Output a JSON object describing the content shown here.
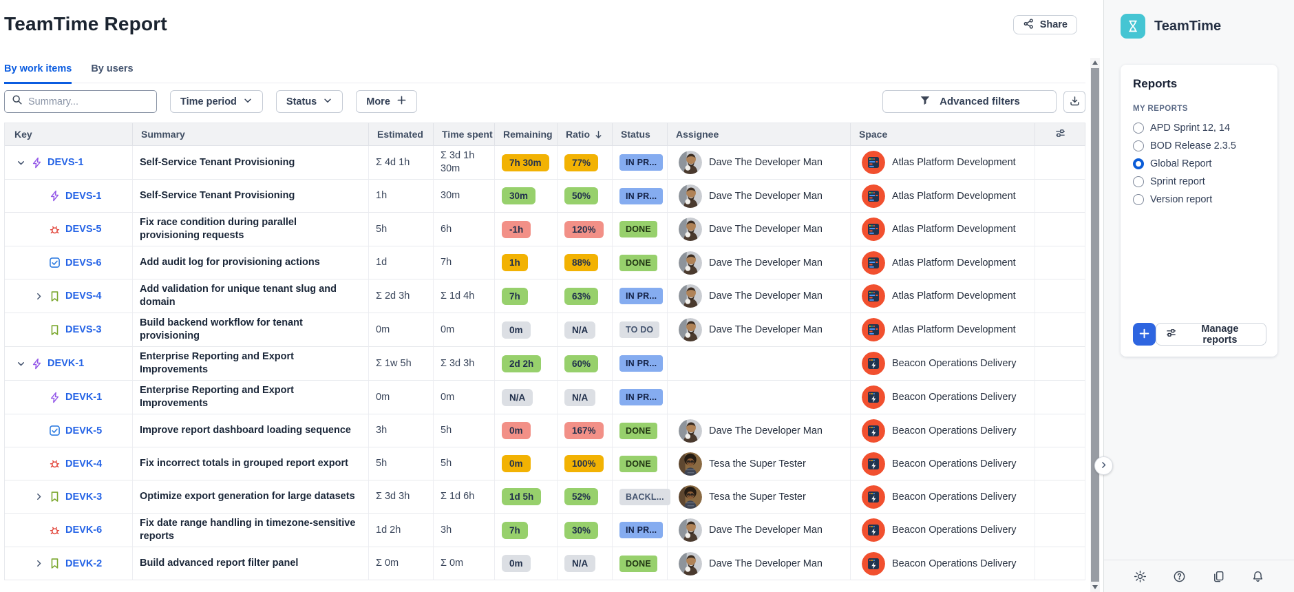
{
  "page": {
    "title": "TeamTime Report"
  },
  "header": {
    "share_label": "Share"
  },
  "tabs": [
    {
      "label": "By work items",
      "active": true
    },
    {
      "label": "By users",
      "active": false
    }
  ],
  "filters": {
    "search_placeholder": "Summary...",
    "time_period_label": "Time period",
    "status_label": "Status",
    "more_label": "More",
    "advanced_filters_label": "Advanced filters"
  },
  "table": {
    "columns": [
      "Key",
      "Summary",
      "Estimated",
      "Time spent",
      "Remaining",
      "Ratio",
      "Status",
      "Assignee",
      "Space"
    ],
    "sorted_column": "Ratio",
    "sort_direction": "desc",
    "rows": [
      {
        "level": 0,
        "expander": "down",
        "type": "epic",
        "key": "DEVS-1",
        "summary": "Self-Service Tenant Provisioning",
        "estimated": "Σ 4d 1h",
        "time_spent": "Σ 3d 1h 30m",
        "remaining": {
          "text": "7h 30m",
          "color": "yellow"
        },
        "ratio": {
          "text": "77%",
          "color": "yellow"
        },
        "status": {
          "text": "IN PR...",
          "color": "blue"
        },
        "assignee": "Dave The Developer Man",
        "avatar": "dave",
        "space": "Atlas Platform Development",
        "space_icon": "atlas"
      },
      {
        "level": 1,
        "expander": null,
        "type": "epic",
        "key": "DEVS-1",
        "summary": "Self-Service Tenant Provisioning",
        "estimated": "1h",
        "time_spent": "30m",
        "remaining": {
          "text": "30m",
          "color": "green"
        },
        "ratio": {
          "text": "50%",
          "color": "green"
        },
        "status": {
          "text": "IN PR...",
          "color": "blue"
        },
        "assignee": "Dave The Developer Man",
        "avatar": "dave",
        "space": "Atlas Platform Development",
        "space_icon": "atlas"
      },
      {
        "level": 1,
        "expander": null,
        "type": "bug",
        "key": "DEVS-5",
        "summary": "Fix race condition during parallel provisioning requests",
        "estimated": "5h",
        "time_spent": "6h",
        "remaining": {
          "text": "-1h",
          "color": "red"
        },
        "ratio": {
          "text": "120%",
          "color": "red"
        },
        "status": {
          "text": "DONE",
          "color": "green"
        },
        "assignee": "Dave The Developer Man",
        "avatar": "dave",
        "space": "Atlas Platform Development",
        "space_icon": "atlas"
      },
      {
        "level": 1,
        "expander": null,
        "type": "task",
        "key": "DEVS-6",
        "summary": "Add audit log for provisioning actions",
        "estimated": "1d",
        "time_spent": "7h",
        "remaining": {
          "text": "1h",
          "color": "yellow"
        },
        "ratio": {
          "text": "88%",
          "color": "yellow"
        },
        "status": {
          "text": "DONE",
          "color": "green"
        },
        "assignee": "Dave The Developer Man",
        "avatar": "dave",
        "space": "Atlas Platform Development",
        "space_icon": "atlas"
      },
      {
        "level": 1,
        "expander": "right",
        "type": "story",
        "key": "DEVS-4",
        "summary": "Add validation for unique tenant slug and domain",
        "estimated": "Σ 2d 3h",
        "time_spent": "Σ 1d 4h",
        "remaining": {
          "text": "7h",
          "color": "green"
        },
        "ratio": {
          "text": "63%",
          "color": "green"
        },
        "status": {
          "text": "IN PR...",
          "color": "blue"
        },
        "assignee": "Dave The Developer Man",
        "avatar": "dave",
        "space": "Atlas Platform Development",
        "space_icon": "atlas"
      },
      {
        "level": 1,
        "expander": null,
        "type": "story",
        "key": "DEVS-3",
        "summary": "Build backend workflow for tenant provisioning",
        "estimated": "0m",
        "time_spent": "0m",
        "remaining": {
          "text": "0m",
          "color": "gray"
        },
        "ratio": {
          "text": "N/A",
          "color": "gray"
        },
        "status": {
          "text": "TO DO",
          "color": "gray"
        },
        "assignee": "Dave The Developer Man",
        "avatar": "dave",
        "space": "Atlas Platform Development",
        "space_icon": "atlas"
      },
      {
        "level": 0,
        "expander": "down",
        "type": "epic",
        "key": "DEVK-1",
        "summary": "Enterprise Reporting and Export Improvements",
        "estimated": "Σ 1w 5h",
        "time_spent": "Σ 3d 3h",
        "remaining": {
          "text": "2d 2h",
          "color": "green"
        },
        "ratio": {
          "text": "60%",
          "color": "green"
        },
        "status": {
          "text": "IN PR...",
          "color": "blue"
        },
        "assignee": null,
        "avatar": null,
        "space": "Beacon Operations Delivery",
        "space_icon": "beacon"
      },
      {
        "level": 1,
        "expander": null,
        "type": "epic",
        "key": "DEVK-1",
        "summary": "Enterprise Reporting and Export Improvements",
        "estimated": "0m",
        "time_spent": "0m",
        "remaining": {
          "text": "N/A",
          "color": "gray"
        },
        "ratio": {
          "text": "N/A",
          "color": "gray"
        },
        "status": {
          "text": "IN PR...",
          "color": "blue"
        },
        "assignee": null,
        "avatar": null,
        "space": "Beacon Operations Delivery",
        "space_icon": "beacon"
      },
      {
        "level": 1,
        "expander": null,
        "type": "task",
        "key": "DEVK-5",
        "summary": "Improve report dashboard loading sequence",
        "estimated": "3h",
        "time_spent": "5h",
        "remaining": {
          "text": "0m",
          "color": "red"
        },
        "ratio": {
          "text": "167%",
          "color": "red"
        },
        "status": {
          "text": "DONE",
          "color": "green"
        },
        "assignee": "Dave The Developer Man",
        "avatar": "dave",
        "space": "Beacon Operations Delivery",
        "space_icon": "beacon"
      },
      {
        "level": 1,
        "expander": null,
        "type": "bug",
        "key": "DEVK-4",
        "summary": "Fix incorrect totals in grouped report export",
        "estimated": "5h",
        "time_spent": "5h",
        "remaining": {
          "text": "0m",
          "color": "yellow"
        },
        "ratio": {
          "text": "100%",
          "color": "yellow"
        },
        "status": {
          "text": "DONE",
          "color": "green"
        },
        "assignee": "Tesa the Super Tester",
        "avatar": "tesa",
        "space": "Beacon Operations Delivery",
        "space_icon": "beacon"
      },
      {
        "level": 1,
        "expander": "right",
        "type": "story",
        "key": "DEVK-3",
        "summary": "Optimize export generation for large datasets",
        "estimated": "Σ 3d 3h",
        "time_spent": "Σ 1d 6h",
        "remaining": {
          "text": "1d 5h",
          "color": "green"
        },
        "ratio": {
          "text": "52%",
          "color": "green"
        },
        "status": {
          "text": "BACKL...",
          "color": "gray"
        },
        "assignee": "Tesa the Super Tester",
        "avatar": "tesa",
        "space": "Beacon Operations Delivery",
        "space_icon": "beacon"
      },
      {
        "level": 1,
        "expander": null,
        "type": "bug",
        "key": "DEVK-6",
        "summary": "Fix date range handling in timezone-sensitive reports",
        "estimated": "1d 2h",
        "time_spent": "3h",
        "remaining": {
          "text": "7h",
          "color": "green"
        },
        "ratio": {
          "text": "30%",
          "color": "green"
        },
        "status": {
          "text": "IN PR...",
          "color": "blue"
        },
        "assignee": "Dave The Developer Man",
        "avatar": "dave",
        "space": "Beacon Operations Delivery",
        "space_icon": "beacon"
      },
      {
        "level": 1,
        "expander": "right",
        "type": "story",
        "key": "DEVK-2",
        "summary": "Build advanced report filter panel",
        "estimated": "Σ 0m",
        "time_spent": "Σ 0m",
        "remaining": {
          "text": "0m",
          "color": "gray"
        },
        "ratio": {
          "text": "N/A",
          "color": "gray"
        },
        "status": {
          "text": "DONE",
          "color": "green"
        },
        "assignee": "Dave The Developer Man",
        "avatar": "dave",
        "space": "Beacon Operations Delivery",
        "space_icon": "beacon"
      }
    ]
  },
  "sidebar": {
    "app_name": "TeamTime",
    "panel_title": "Reports",
    "group_label": "MY REPORTS",
    "reports": [
      {
        "label": "APD Sprint 12, 14",
        "selected": false
      },
      {
        "label": "BOD Release 2.3.5",
        "selected": false
      },
      {
        "label": "Global Report",
        "selected": true
      },
      {
        "label": "Sprint report",
        "selected": false
      },
      {
        "label": "Version report",
        "selected": false
      }
    ],
    "manage_label": "Manage reports"
  },
  "icons": {
    "logo": "hourglass",
    "share": "share-nodes",
    "search": "magnifier",
    "dropdown": "chevron-down",
    "more": "plus",
    "advanced_filters": "funnel",
    "export": "download-tray",
    "column_config": "sliders",
    "sort": "arrow-down",
    "epic": "purple-lightning",
    "bug": "red-bug",
    "task": "blue-check-square",
    "story": "green-bookmark",
    "footer": [
      "gear",
      "help-circle",
      "copy",
      "bell"
    ]
  },
  "colors": {
    "accent_blue": "#0b5ce0",
    "link_blue": "#2463e6",
    "logo_teal": "#45c5d3",
    "badge_yellow": "#f2b203",
    "badge_green": "#97d06c",
    "badge_red": "#f29087",
    "badge_gray": "#dcdfe4",
    "status_blue": "#85acf0",
    "space_orange": "#f1502f",
    "sidebar_bg": "#f7f8f9"
  }
}
